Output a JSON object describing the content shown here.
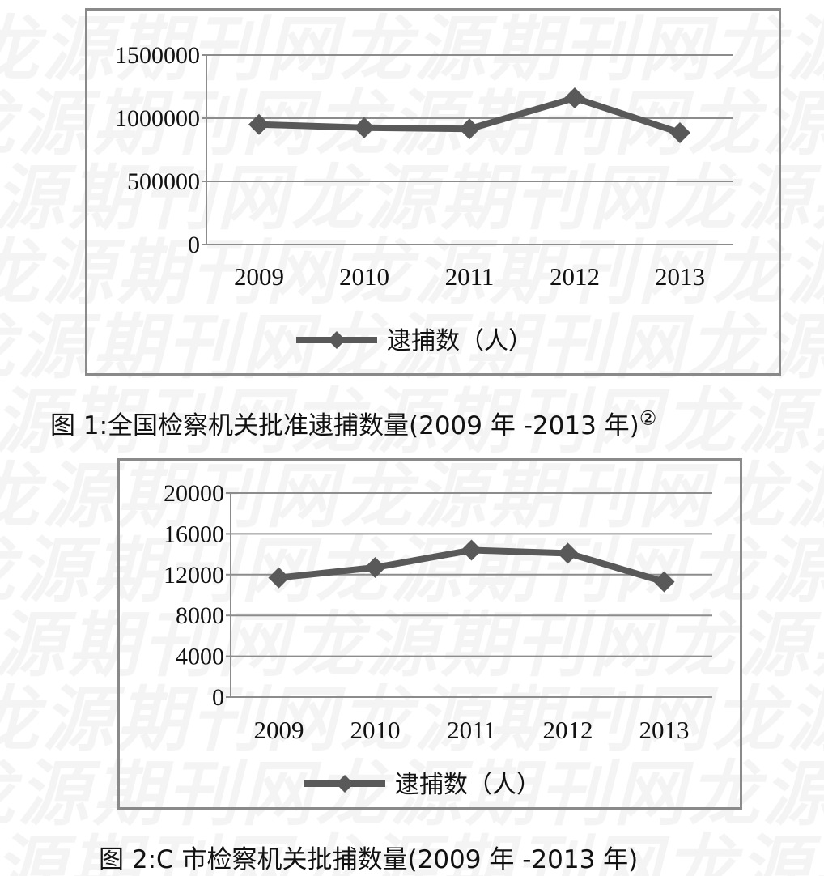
{
  "watermark": "龙源期刊网",
  "chart_data": [
    {
      "type": "line",
      "categories": [
        "2009",
        "2010",
        "2011",
        "2012",
        "2013"
      ],
      "series": [
        {
          "name": "逮捕数（人）",
          "values": [
            950000,
            925000,
            915000,
            1160000,
            885000
          ],
          "color": "#595959"
        }
      ],
      "yticks": [
        "1500000",
        "1000000",
        "500000",
        "0"
      ],
      "ylim": [
        0,
        1500000
      ],
      "grid": true,
      "legend_position": "bottom",
      "caption": "图 1:全国检察机关批准逮捕数量(2009 年 -2013 年)",
      "caption_note": "②"
    },
    {
      "type": "line",
      "categories": [
        "2009",
        "2010",
        "2011",
        "2012",
        "2013"
      ],
      "series": [
        {
          "name": "逮捕数（人）",
          "values": [
            11700,
            12700,
            14400,
            14100,
            11300
          ],
          "color": "#595959"
        }
      ],
      "yticks": [
        "20000",
        "16000",
        "12000",
        "8000",
        "4000",
        "0"
      ],
      "ylim": [
        0,
        20000
      ],
      "grid": true,
      "legend_position": "bottom",
      "caption": "图 2:C 市检察机关批捕数量(2009 年 -2013 年)"
    }
  ]
}
